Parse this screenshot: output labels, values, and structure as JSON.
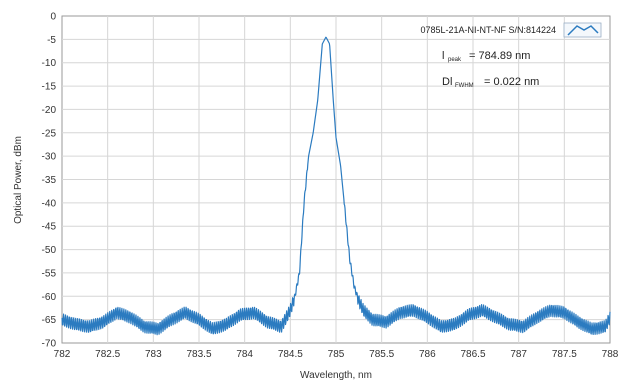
{
  "chart_data": {
    "type": "line",
    "title": "",
    "xlabel": "Wavelength, nm",
    "ylabel": "Optical Power, dBm",
    "xlim": [
      782,
      788
    ],
    "ylim": [
      -70,
      0
    ],
    "grid": true,
    "legend_position": "top-right",
    "x_ticks": [
      "782",
      "782.5",
      "783",
      "783.5",
      "784",
      "784.5",
      "785",
      "785.5",
      "786",
      "786.5",
      "787",
      "787.5",
      "788"
    ],
    "y_ticks": [
      "0",
      "-5",
      "-10",
      "-15",
      "-20",
      "-25",
      "-30",
      "-35",
      "-40",
      "-45",
      "-50",
      "-55",
      "-60",
      "-65",
      "-70"
    ],
    "series": [
      {
        "name": "0785L-21A-NI-NT-NF S/N:814224",
        "color": "#2b7bc0",
        "x": [
          782.0,
          782.15,
          782.3,
          782.45,
          782.6,
          782.75,
          782.9,
          783.05,
          783.2,
          783.35,
          783.5,
          783.65,
          783.8,
          783.95,
          784.1,
          784.25,
          784.4,
          784.5,
          784.55,
          784.6,
          784.65,
          784.7,
          784.75,
          784.8,
          784.85,
          784.89,
          784.93,
          784.97,
          785.0,
          785.05,
          785.1,
          785.15,
          785.2,
          785.25,
          785.3,
          785.4,
          785.55,
          785.7,
          785.85,
          786.0,
          786.15,
          786.3,
          786.45,
          786.6,
          786.75,
          786.9,
          787.05,
          787.2,
          787.35,
          787.5,
          787.65,
          787.8,
          787.95,
          788.0
        ],
        "y": [
          -65,
          -66,
          -66.5,
          -65.5,
          -63.5,
          -64.5,
          -66.5,
          -67,
          -65,
          -63.5,
          -65,
          -67,
          -66,
          -64,
          -63.5,
          -65.5,
          -66.5,
          -63,
          -60,
          -55,
          -40,
          -30,
          -25,
          -18,
          -6,
          -4.5,
          -6,
          -18,
          -26,
          -32,
          -42,
          -52,
          -58,
          -61,
          -63,
          -65,
          -65.5,
          -63.5,
          -63,
          -64.5,
          -66.5,
          -66,
          -64,
          -63,
          -64.5,
          -66,
          -66.5,
          -64.5,
          -63,
          -63.5,
          -65.5,
          -67,
          -66.5,
          -64.5
        ]
      }
    ],
    "annotations": [
      {
        "symbol": "l",
        "subscript": "peak",
        "value": "= 784.89 nm"
      },
      {
        "symbol": "Dl",
        "subscript": "FWHM",
        "value": "= 0.022 nm"
      }
    ]
  }
}
